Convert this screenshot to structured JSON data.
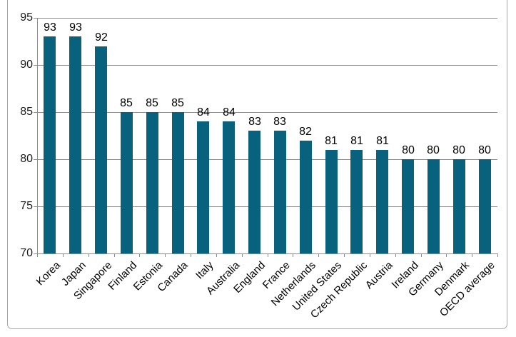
{
  "chart_data": {
    "type": "bar",
    "title": "",
    "xlabel": "",
    "ylabel": "",
    "categories": [
      "Korea",
      "Japan",
      "Singapore",
      "Finland",
      "Estonia",
      "Canada",
      "Italy",
      "Australia",
      "England",
      "France",
      "Netherlands",
      "United States",
      "Czech Republic",
      "Austria",
      "Ireland",
      "Germany",
      "Denmark",
      "OECD average"
    ],
    "values": [
      93,
      93,
      92,
      85,
      85,
      85,
      84,
      84,
      83,
      83,
      82,
      81,
      81,
      81,
      80,
      80,
      80,
      80
    ],
    "ylim": [
      70,
      95
    ],
    "yticks": [
      70,
      75,
      80,
      85,
      90,
      95
    ],
    "grid": true,
    "data_labels": true,
    "legend": "none",
    "x_label_rotation_deg": 45
  },
  "colors": {
    "bar": "#08617d",
    "gridline": "#8c8c8c",
    "axis": "#8c8c8c",
    "frame_border": "#a6a6a6",
    "text": "#000000",
    "axis_text": "#1a1a1a",
    "background": "#ffffff"
  }
}
